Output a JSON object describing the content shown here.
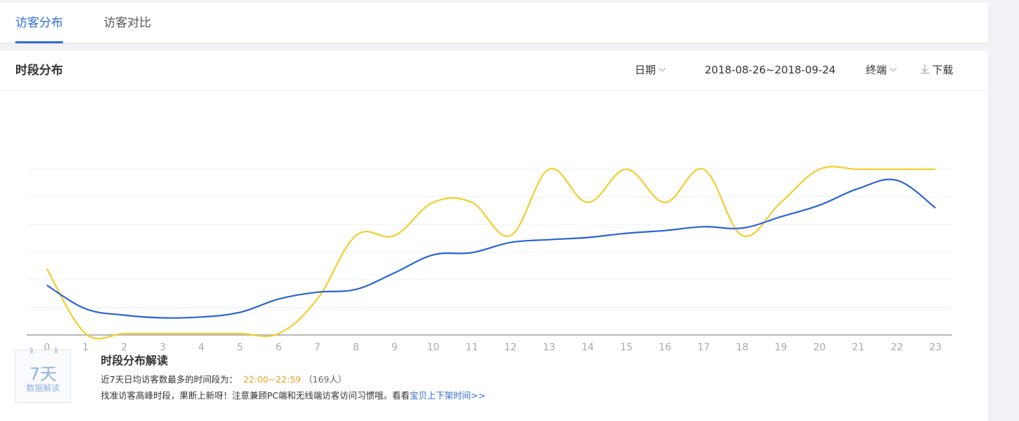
{
  "tabs": [
    {
      "label": "访客分布",
      "active": true
    },
    {
      "label": "访客对比",
      "active": false
    }
  ],
  "panel": {
    "title": "时段分布",
    "date_label": "日期",
    "date_range": "2018-08-26~2018-09-24",
    "terminal_label": "终端",
    "download_label": "下载"
  },
  "colors": {
    "accent": "#2f6bd8",
    "series_blue": "#2a63d6",
    "series_yellow": "#f2ce2c",
    "highlight": "#f0a020"
  },
  "chart_data": {
    "type": "line",
    "x": [
      "0",
      "1",
      "2",
      "3",
      "4",
      "5",
      "6",
      "7",
      "8",
      "9",
      "10",
      "11",
      "12",
      "13",
      "14",
      "15",
      "16",
      "17",
      "18",
      "19",
      "20",
      "21",
      "22",
      "23"
    ],
    "ylim": [
      0,
      6
    ],
    "grid": true,
    "series": [
      {
        "color": "#2a63d6",
        "values": [
          1.8,
          0.95,
          0.72,
          0.62,
          0.65,
          0.82,
          1.3,
          1.55,
          1.65,
          2.25,
          2.9,
          2.98,
          3.35,
          3.45,
          3.53,
          3.68,
          3.78,
          3.92,
          3.87,
          4.28,
          4.7,
          5.3,
          5.6,
          4.6
        ]
      },
      {
        "color": "#f2ce2c",
        "values": [
          2.4,
          0.05,
          0.05,
          0.05,
          0.05,
          0.05,
          0.05,
          1.3,
          3.6,
          3.6,
          4.8,
          4.8,
          3.6,
          6.0,
          4.8,
          6.0,
          4.8,
          6.0,
          3.6,
          4.8,
          6.0,
          6.0,
          6.0,
          6.0
        ]
      }
    ]
  },
  "interpretation": {
    "badge_big": "7天",
    "badge_small": "数据解读",
    "title": "时段分布解读",
    "line1_prefix": "近7天日均访客数最多的时间段为：",
    "line1_highlight": "22:00~22:59",
    "line1_count": "（169人）",
    "line2_text": "找准访客高峰时段，果断上新呀！注意兼顾PC端和无线端访客访问习惯哦。看看",
    "line2_link": "宝贝上下架时间>>"
  }
}
